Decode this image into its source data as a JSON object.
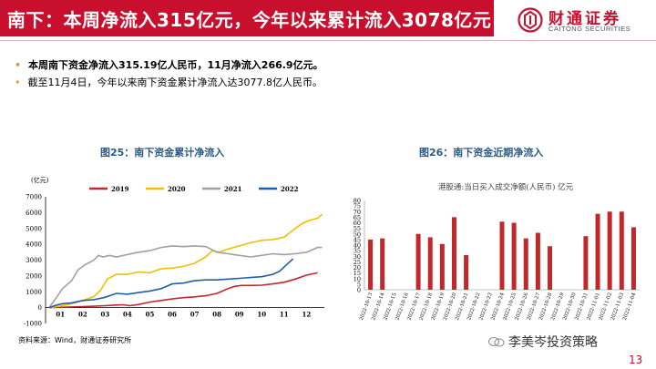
{
  "slide": {
    "title": "南下：本周净流入315亿元，今年以来累计流入3078亿元",
    "logo_cn": "财通证券",
    "logo_en": "CAITONG SECURITIES",
    "page_number": "13",
    "brand_color": "#c8102e"
  },
  "bullets": [
    "本周南下资金净流入315.19亿人民币，11月净流入266.9亿元。",
    "截至11月4日，今年以来南下资金累计净流入达3077.8亿人民币。"
  ],
  "source": "资料来源：Wind，财通证券研究所",
  "watermark": "李美岑投资策略",
  "figures": [
    {
      "figure_title": "图25：南下资金累计净流入",
      "chart_data": {
        "type": "line",
        "title": "",
        "ylabel": "(亿元)",
        "ylim": [
          -1000,
          7000
        ],
        "yticks": [
          -1000,
          0,
          1000,
          2000,
          3000,
          4000,
          5000,
          6000,
          7000
        ],
        "x_tick_labels": [
          "01",
          "02",
          "03",
          "04",
          "05",
          "06",
          "07",
          "08",
          "09",
          "10",
          "11",
          "12"
        ],
        "legend_position": "top",
        "series": [
          {
            "name": "2019",
            "color": "#c0282c",
            "points": [
              [
                0,
                0
              ],
              [
                0.5,
                20
              ],
              [
                1,
                40
              ],
              [
                1.5,
                60
              ],
              [
                2,
                90
              ],
              [
                2.5,
                120
              ],
              [
                3,
                160
              ],
              [
                3.3,
                180
              ],
              [
                3.6,
                120
              ],
              [
                4,
                200
              ],
              [
                4.5,
                350
              ],
              [
                5,
                450
              ],
              [
                5.5,
                550
              ],
              [
                6,
                630
              ],
              [
                6.5,
                680
              ],
              [
                7,
                750
              ],
              [
                7.5,
                900
              ],
              [
                8,
                1200
              ],
              [
                8.3,
                1350
              ],
              [
                8.6,
                1400
              ],
              [
                9,
                1400
              ],
              [
                9.5,
                1420
              ],
              [
                10,
                1500
              ],
              [
                10.5,
                1600
              ],
              [
                11,
                1800
              ],
              [
                11.5,
                2050
              ],
              [
                12,
                2200
              ]
            ]
          },
          {
            "name": "2020",
            "color": "#f0c000",
            "points": [
              [
                0,
                0
              ],
              [
                0.5,
                100
              ],
              [
                1,
                250
              ],
              [
                1.5,
                450
              ],
              [
                2,
                700
              ],
              [
                2.3,
                1100
              ],
              [
                2.6,
                1800
              ],
              [
                3,
                2100
              ],
              [
                3.5,
                2100
              ],
              [
                4,
                2250
              ],
              [
                4.5,
                2200
              ],
              [
                5,
                2450
              ],
              [
                5.5,
                2500
              ],
              [
                6,
                2600
              ],
              [
                6.5,
                2800
              ],
              [
                7,
                3200
              ],
              [
                7.3,
                3600
              ],
              [
                7.6,
                3500
              ],
              [
                8,
                3700
              ],
              [
                8.5,
                3900
              ],
              [
                9,
                4100
              ],
              [
                9.5,
                4250
              ],
              [
                10,
                4300
              ],
              [
                10.5,
                4450
              ],
              [
                11,
                5000
              ],
              [
                11.3,
                5300
              ],
              [
                11.6,
                5500
              ],
              [
                12,
                5650
              ],
              [
                12.2,
                5900
              ]
            ]
          },
          {
            "name": "2021",
            "color": "#a0a0a0",
            "points": [
              [
                0,
                0
              ],
              [
                0.3,
                600
              ],
              [
                0.6,
                1200
              ],
              [
                1,
                1700
              ],
              [
                1.3,
                2400
              ],
              [
                1.6,
                2700
              ],
              [
                2,
                3000
              ],
              [
                2.2,
                3300
              ],
              [
                2.4,
                3200
              ],
              [
                2.7,
                3300
              ],
              [
                3,
                3200
              ],
              [
                3.5,
                3350
              ],
              [
                4,
                3500
              ],
              [
                4.5,
                3600
              ],
              [
                5,
                3800
              ],
              [
                5.5,
                3900
              ],
              [
                6,
                3850
              ],
              [
                6.5,
                3900
              ],
              [
                7,
                3850
              ],
              [
                7.5,
                3500
              ],
              [
                8,
                3400
              ],
              [
                8.5,
                3300
              ],
              [
                9,
                3200
              ],
              [
                9.5,
                3300
              ],
              [
                10,
                3400
              ],
              [
                10.5,
                3350
              ],
              [
                11,
                3400
              ],
              [
                11.5,
                3500
              ],
              [
                12,
                3800
              ],
              [
                12.2,
                3800
              ]
            ]
          },
          {
            "name": "2022",
            "color": "#1f5fa8",
            "points": [
              [
                0,
                0
              ],
              [
                0.3,
                150
              ],
              [
                0.6,
                250
              ],
              [
                1,
                300
              ],
              [
                1.5,
                450
              ],
              [
                2,
                500
              ],
              [
                2.5,
                650
              ],
              [
                3,
                900
              ],
              [
                3.5,
                850
              ],
              [
                4,
                950
              ],
              [
                4.5,
                1050
              ],
              [
                5,
                1200
              ],
              [
                5.5,
                1500
              ],
              [
                6,
                1550
              ],
              [
                6.5,
                1700
              ],
              [
                7,
                1750
              ],
              [
                7.5,
                1750
              ],
              [
                8,
                1800
              ],
              [
                8.5,
                1850
              ],
              [
                9,
                1900
              ],
              [
                9.5,
                1950
              ],
              [
                10,
                2100
              ],
              [
                10.3,
                2300
              ],
              [
                10.6,
                2700
              ],
              [
                10.9,
                3078
              ]
            ]
          }
        ]
      }
    },
    {
      "figure_title": "图26：南下资金近期净流入",
      "chart_data": {
        "type": "bar",
        "title": "港股通:当日买入成交净额(人民币)  亿元",
        "ylim": [
          0,
          80
        ],
        "yticks": [
          0,
          5,
          10,
          15,
          20,
          25,
          30,
          35,
          40,
          45,
          50,
          55,
          60,
          65,
          70,
          75,
          80
        ],
        "color": "#c0282c",
        "categories": [
          "2022-10-13",
          "2022-10-14",
          "2022-10-15",
          "2022-10-16",
          "2022-10-17",
          "2022-10-18",
          "2022-10-19",
          "2022-10-20",
          "2022-10-21",
          "2022-10-22",
          "2022-10-23",
          "2022-10-24",
          "2022-10-25",
          "2022-10-26",
          "2022-10-27",
          "2022-10-28",
          "2022-10-29",
          "2022-10-30",
          "2022-10-31",
          "2022-11-01",
          "2022-11-02",
          "2022-11-03",
          "2022-11-04"
        ],
        "values": [
          45,
          46,
          0,
          0,
          50,
          47,
          41,
          65,
          31,
          0,
          0,
          61,
          60,
          46,
          51,
          39,
          0,
          0,
          48,
          68,
          70,
          70,
          56
        ]
      }
    }
  ]
}
